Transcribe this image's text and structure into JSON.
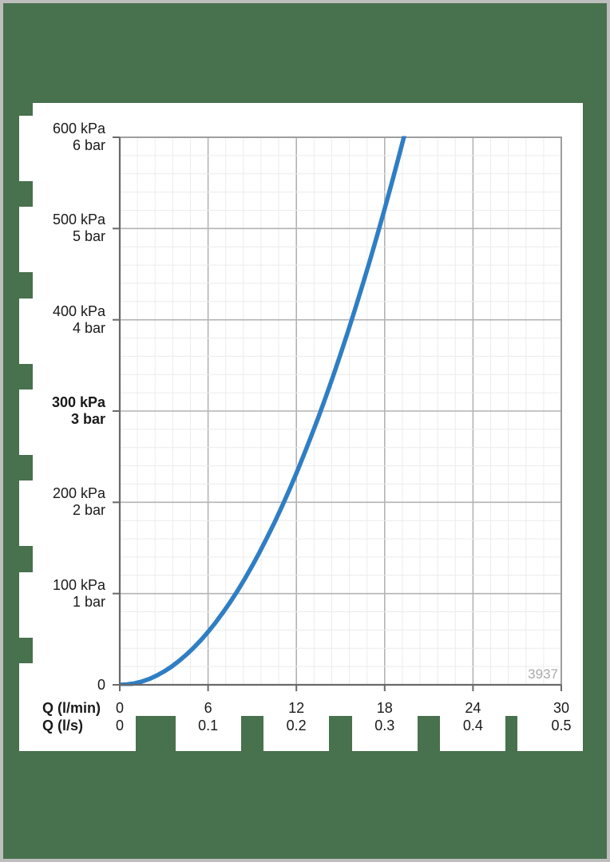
{
  "page": {
    "background_color": "#48714E",
    "frame_color": "#BEBEBE",
    "panel_color": "#FFFFFF"
  },
  "chart_data": {
    "type": "line",
    "title": "",
    "description": "Pressure loss vs flow rate diagram",
    "reference_number": "3937",
    "reference_number_color": "#A9A9A9",
    "x_axis": {
      "title_row1": "Q (l/min)",
      "title_row2": "Q (l/s)",
      "range_lmin": [
        0,
        30
      ],
      "major_step_lmin": 6,
      "minor_step_lmin": 1.2,
      "ticks": [
        {
          "lmin": "0",
          "ls": "0"
        },
        {
          "lmin": "6",
          "ls": "0.1"
        },
        {
          "lmin": "12",
          "ls": "0.2"
        },
        {
          "lmin": "18",
          "ls": "0.3"
        },
        {
          "lmin": "24",
          "ls": "0.4"
        },
        {
          "lmin": "30",
          "ls": "0.5"
        }
      ]
    },
    "y_axis": {
      "range_kpa": [
        0,
        600
      ],
      "major_step_kpa": 100,
      "minor_step_kpa": 20,
      "ticks": [
        {
          "kpa": "600 kPa",
          "bar": "6 bar",
          "value": 600,
          "bold": false
        },
        {
          "kpa": "500 kPa",
          "bar": "5 bar",
          "value": 500,
          "bold": false
        },
        {
          "kpa": "400 kPa",
          "bar": "4 bar",
          "value": 400,
          "bold": false
        },
        {
          "kpa": "300 kPa",
          "bar": "3 bar",
          "value": 300,
          "bold": true
        },
        {
          "kpa": "200 kPa",
          "bar": "2 bar",
          "value": 200,
          "bold": false
        },
        {
          "kpa": "100 kPa",
          "bar": "1 bar",
          "value": 100,
          "bold": false
        },
        {
          "kpa": "0",
          "bar": "",
          "value": 0,
          "bold": false
        }
      ]
    },
    "grid": {
      "minor_color": "#ECECEC",
      "major_color": "#B3B3B3",
      "border_color": "#9E9E9E",
      "axis_color": "#696969"
    },
    "series": [
      {
        "name": "pressure-loss-curve",
        "color": "#2F7EC4",
        "width": 5.5,
        "points_q_kpa": [
          [
            0,
            0
          ],
          [
            0.5,
            0.4
          ],
          [
            1,
            1.6
          ],
          [
            1.5,
            3.6
          ],
          [
            2,
            6.4
          ],
          [
            2.5,
            10.1
          ],
          [
            3,
            14.5
          ],
          [
            3.5,
            19.7
          ],
          [
            4,
            25.8
          ],
          [
            4.5,
            32.6
          ],
          [
            5,
            40.3
          ],
          [
            5.5,
            48.7
          ],
          [
            6,
            58.0
          ],
          [
            6.5,
            68.0
          ],
          [
            7,
            78.9
          ],
          [
            7.5,
            90.6
          ],
          [
            8,
            103.0
          ],
          [
            8.5,
            116.3
          ],
          [
            9,
            130.4
          ],
          [
            9.5,
            145.3
          ],
          [
            10,
            161.0
          ],
          [
            10.5,
            177.5
          ],
          [
            11,
            194.8
          ],
          [
            11.5,
            212.9
          ],
          [
            12,
            231.8
          ],
          [
            12.5,
            251.6
          ],
          [
            13,
            272.1
          ],
          [
            13.5,
            293.4
          ],
          [
            14,
            315.6
          ],
          [
            14.5,
            338.5
          ],
          [
            15,
            362.3
          ],
          [
            15.5,
            386.8
          ],
          [
            16,
            412.2
          ],
          [
            16.5,
            438.3
          ],
          [
            17,
            465.3
          ],
          [
            17.5,
            493.1
          ],
          [
            18,
            521.6
          ],
          [
            18.5,
            551.0
          ],
          [
            19,
            581.2
          ],
          [
            19.5,
            612.2
          ]
        ]
      }
    ],
    "legend": null
  }
}
